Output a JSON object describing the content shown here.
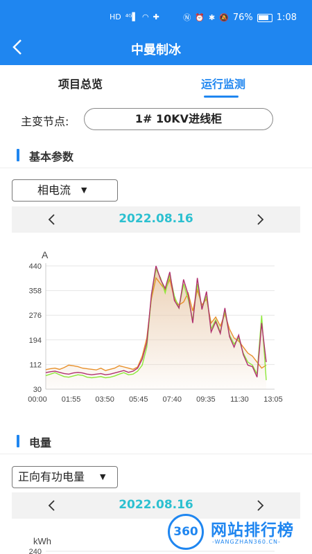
{
  "status_bar": {
    "left_icons": [
      "HD",
      "4G signal",
      "wifi",
      "puzzle"
    ],
    "battery_percent": "76%",
    "time": "1:08"
  },
  "header": {
    "title": "中曼制冰"
  },
  "tabs": [
    {
      "label": "项目总览",
      "active": false
    },
    {
      "label": "运行监测",
      "active": true
    }
  ],
  "node": {
    "label": "主变节点:",
    "value": "1# 10KV进线柜"
  },
  "section1": {
    "title": "基本参数"
  },
  "dropdown1": {
    "value": "相电流"
  },
  "datebar1": {
    "date": "2022.08.16"
  },
  "chart_data": [
    {
      "type": "line",
      "yunit": "A",
      "yticks": [
        "440",
        "358",
        "276",
        "194",
        "112",
        "30"
      ],
      "xticks": [
        "00:00",
        "01:55",
        "03:50",
        "05:45",
        "07:40",
        "09:35",
        "11:30",
        "13:05"
      ],
      "ylim": [
        30,
        440
      ],
      "x_range_hours": [
        0,
        13.08
      ],
      "series_colors": [
        "#e8902a",
        "#8de83a",
        "#b0306e"
      ],
      "area_fill": "#e8c8a8",
      "series": [
        {
          "values": [
            95,
            98,
            100,
            96,
            102,
            110,
            108,
            105,
            100,
            98,
            96,
            94,
            100,
            92,
            96,
            100,
            108,
            104,
            100,
            96,
            104,
            140,
            200,
            330,
            400,
            380,
            360,
            395,
            330,
            310,
            320,
            350,
            290,
            360,
            310,
            330,
            250,
            270,
            240,
            280,
            230,
            200,
            190,
            170,
            150,
            140,
            120,
            100,
            110
          ]
        },
        {
          "values": [
            75,
            80,
            85,
            78,
            72,
            70,
            74,
            78,
            76,
            70,
            68,
            70,
            72,
            68,
            70,
            74,
            80,
            85,
            78,
            80,
            90,
            110,
            170,
            340,
            430,
            400,
            350,
            410,
            340,
            300,
            380,
            330,
            260,
            380,
            300,
            340,
            230,
            260,
            220,
            290,
            210,
            180,
            200,
            150,
            120,
            110,
            80,
            275,
            60
          ]
        },
        {
          "values": [
            85,
            88,
            90,
            86,
            82,
            80,
            84,
            86,
            84,
            80,
            78,
            80,
            82,
            78,
            80,
            84,
            88,
            92,
            86,
            90,
            100,
            130,
            185,
            345,
            440,
            395,
            365,
            420,
            325,
            300,
            395,
            345,
            250,
            400,
            295,
            355,
            220,
            255,
            215,
            300,
            205,
            170,
            210,
            145,
            110,
            105,
            70,
            250,
            120
          ]
        }
      ]
    },
    {
      "type": "line",
      "yunit": "kWh",
      "yticks": [
        "240"
      ],
      "series": []
    }
  ],
  "section2": {
    "title": "电量"
  },
  "dropdown2": {
    "value": "正向有功电量"
  },
  "datebar2": {
    "date": "2022.08.16"
  },
  "watermark": {
    "logo_text": "360",
    "text": "网站排行榜",
    "sub": "-WANGZHAN360.CN-"
  }
}
